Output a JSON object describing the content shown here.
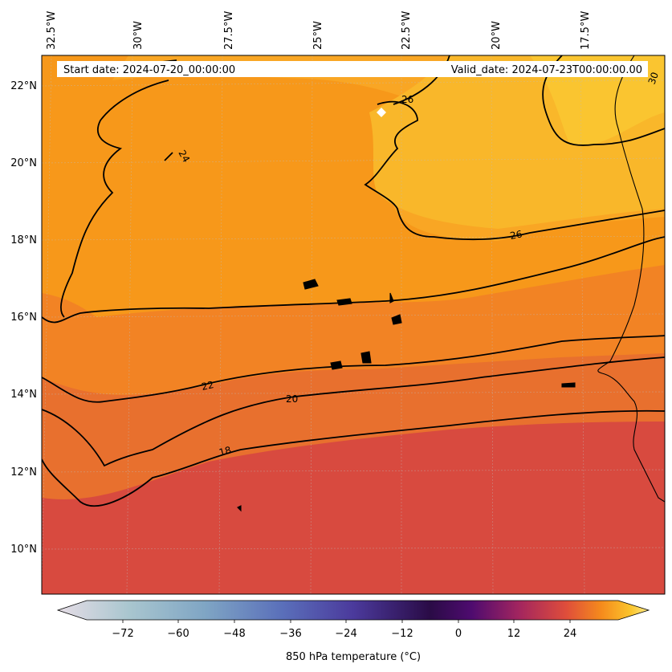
{
  "header": {
    "start_date": "Start date: 2024-07-20_00:00:00",
    "valid_date": "Valid_date: 2024-07-23T00:00:00.00"
  },
  "map": {
    "lon_labels": [
      "32.5°W",
      "30°W",
      "27.5°W",
      "25°W",
      "22.5°W",
      "20°W",
      "17.5°W"
    ],
    "lat_labels": [
      "22°N",
      "20°N",
      "18°N",
      "16°N",
      "14°N",
      "12°N",
      "10°N"
    ],
    "contour_labels": [
      "18",
      "20",
      "22",
      "24",
      "26",
      "26",
      "30"
    ],
    "fill_colors": {
      "hot": "#f9b72a",
      "warm": "#f7981a",
      "mid": "#f28324",
      "cool": "#e8702e",
      "coolest": "#d84a3f"
    },
    "marker": "white-diamond"
  },
  "colorbar": {
    "title": "850 hPa temperature (°C)",
    "ticks": [
      "−72",
      "−60",
      "−48",
      "−36",
      "−24",
      "−12",
      "0",
      "12",
      "24"
    ],
    "colormap": "inferno-like",
    "extend": "both"
  }
}
